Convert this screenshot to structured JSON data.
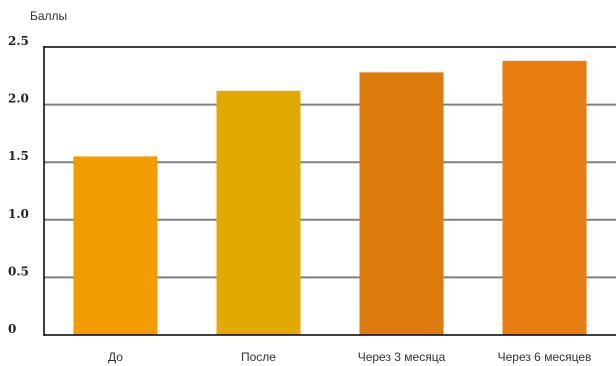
{
  "chart_data": {
    "type": "bar",
    "ylabel": "Баллы",
    "categories": [
      "До",
      "После",
      "Через 3 месяца",
      "Через 6 месяцев"
    ],
    "values": [
      1.55,
      2.12,
      2.28,
      2.38
    ],
    "ylim": [
      0,
      2.5
    ],
    "yticks": [
      0,
      0.5,
      1.0,
      1.5,
      2.0,
      2.5
    ],
    "ytick_labels": [
      "0",
      "0.5",
      "1.0",
      "1.5",
      "2.0",
      "2.5"
    ],
    "grid": true,
    "bar_colors": [
      "#f39c00",
      "#e2aa00",
      "#dd7c0d",
      "#e87e10"
    ],
    "gridline_color": "#808080",
    "axis_color": "#000000"
  }
}
